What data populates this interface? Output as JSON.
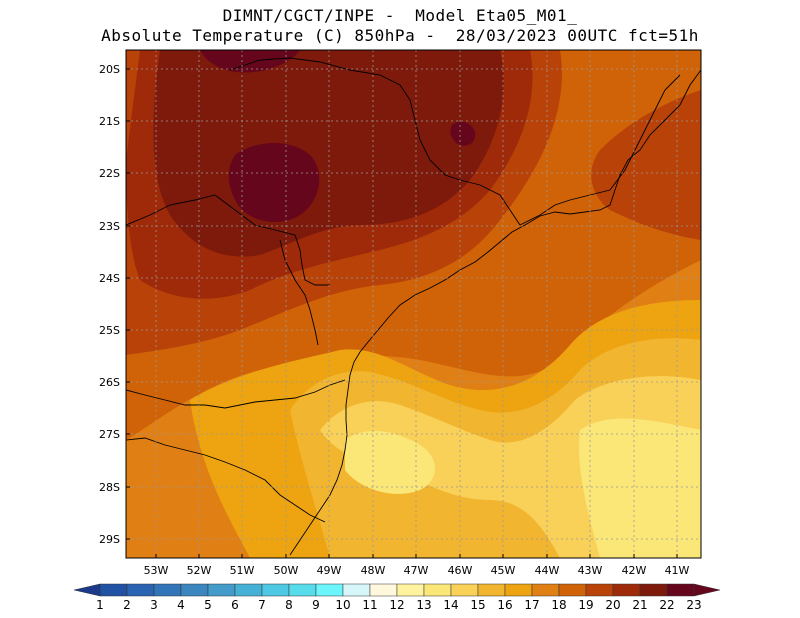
{
  "title": {
    "line1": "DIMNT/CGCT/INPE -  Model Eta05_M01_",
    "line2": "Absolute Temperature (C) 850hPa -  28/03/2023 00UTC fct=51h"
  },
  "axes": {
    "lat_labels": [
      "20S",
      "21S",
      "22S",
      "23S",
      "24S",
      "25S",
      "26S",
      "27S",
      "28S",
      "29S"
    ],
    "lon_labels": [
      "53W",
      "52W",
      "51W",
      "50W",
      "49W",
      "48W",
      "47W",
      "46W",
      "45W",
      "44W",
      "43W",
      "42W",
      "41W"
    ],
    "lat_range": [
      -29.4,
      -19.7
    ],
    "lon_range": [
      -53.8,
      -40.5
    ],
    "grid": "dotted"
  },
  "colorbar": {
    "labels": [
      "1",
      "2",
      "3",
      "4",
      "5",
      "6",
      "7",
      "8",
      "9",
      "10",
      "11",
      "12",
      "13",
      "14",
      "15",
      "16",
      "17",
      "18",
      "19",
      "20",
      "21",
      "22",
      "23"
    ],
    "colors": [
      "#1c3a8c",
      "#2151a3",
      "#2a63b1",
      "#3174b8",
      "#3b86bf",
      "#429bc9",
      "#46b1d6",
      "#4ec8e3",
      "#57dcec",
      "#6cf5fb",
      "#d6f6f9",
      "#fff8dc",
      "#fff3a0",
      "#fbe678",
      "#f9d158",
      "#f1b530",
      "#eda410",
      "#e07f14",
      "#d06208",
      "#b94208",
      "#9e2a0a",
      "#7e1a0c",
      "#66061c"
    ]
  },
  "map": {
    "field": "temperature_850hPa",
    "units": "C"
  }
}
